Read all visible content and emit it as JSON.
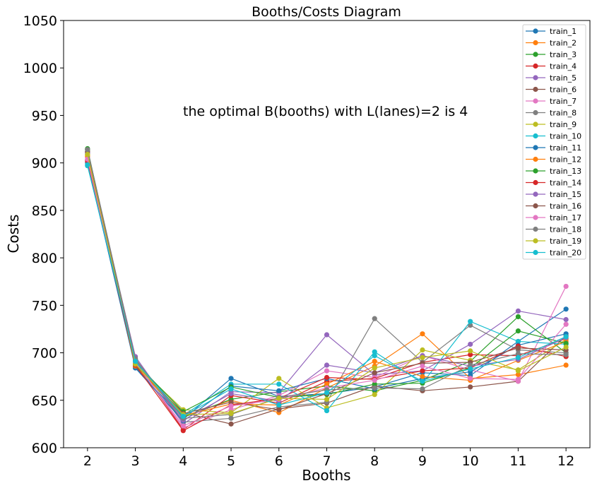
{
  "chart_data": {
    "type": "line",
    "title": "Booths/Costs Diagram",
    "xlabel": "Booths",
    "ylabel": "Costs",
    "x": [
      2,
      3,
      4,
      5,
      6,
      7,
      8,
      9,
      10,
      11,
      12
    ],
    "xlim": [
      1.5,
      12.5
    ],
    "ylim": [
      600,
      1050
    ],
    "yticks": [
      600,
      650,
      700,
      750,
      800,
      850,
      900,
      950,
      1000,
      1050
    ],
    "annotation": "the optimal B(booths) with L(lanes)=2 is 4",
    "legend_position": "top-right",
    "grid": false,
    "series": [
      {
        "name": "train_1",
        "color": "#1f77b4",
        "values": [
          912,
          685,
          630,
          673,
          654,
          657,
          664,
          679,
          676,
          712,
          746
        ]
      },
      {
        "name": "train_2",
        "color": "#ff7f0e",
        "values": [
          909,
          689,
          633,
          650,
          637,
          663,
          686,
          720,
          673,
          677,
          687
        ]
      },
      {
        "name": "train_3",
        "color": "#2ca02c",
        "values": [
          915,
          687,
          632,
          651,
          659,
          665,
          660,
          671,
          691,
          738,
          700
        ]
      },
      {
        "name": "train_4",
        "color": "#d62728",
        "values": [
          903,
          691,
          619,
          655,
          647,
          670,
          673,
          690,
          698,
          697,
          715
        ]
      },
      {
        "name": "train_5",
        "color": "#9467bd",
        "values": [
          910,
          696,
          625,
          659,
          658,
          719,
          677,
          681,
          709,
          744,
          735
        ]
      },
      {
        "name": "train_6",
        "color": "#8c564b",
        "values": [
          911,
          685,
          637,
          625,
          641,
          647,
          665,
          660,
          664,
          670,
          718
        ]
      },
      {
        "name": "train_7",
        "color": "#e377c2",
        "values": [
          906,
          690,
          621,
          640,
          655,
          681,
          674,
          697,
          682,
          670,
          770
        ]
      },
      {
        "name": "train_8",
        "color": "#7f7f7f",
        "values": [
          914,
          694,
          627,
          631,
          643,
          648,
          736,
          690,
          729,
          703,
          700
        ]
      },
      {
        "name": "train_9",
        "color": "#bcbd22",
        "values": [
          908,
          688,
          640,
          637,
          673,
          642,
          656,
          703,
          692,
          682,
          714
        ]
      },
      {
        "name": "train_10",
        "color": "#17becf",
        "values": [
          897,
          692,
          634,
          667,
          667,
          639,
          701,
          668,
          733,
          712,
          709
        ]
      },
      {
        "name": "train_11",
        "color": "#1f77b4",
        "values": [
          900,
          684,
          628,
          665,
          660,
          673,
          662,
          673,
          680,
          708,
          720
        ]
      },
      {
        "name": "train_12",
        "color": "#ff7f0e",
        "values": [
          907,
          686,
          634,
          646,
          645,
          667,
          691,
          675,
          671,
          692,
          712
        ]
      },
      {
        "name": "train_13",
        "color": "#2ca02c",
        "values": [
          914,
          690,
          638,
          664,
          653,
          656,
          667,
          668,
          684,
          723,
          710
        ]
      },
      {
        "name": "train_14",
        "color": "#d62728",
        "values": [
          902,
          687,
          618,
          645,
          652,
          674,
          672,
          681,
          684,
          707,
          696
        ]
      },
      {
        "name": "train_15",
        "color": "#9467bd",
        "values": [
          911,
          693,
          629,
          657,
          649,
          687,
          679,
          697,
          686,
          693,
          716
        ]
      },
      {
        "name": "train_16",
        "color": "#8c564b",
        "values": [
          912,
          688,
          636,
          648,
          640,
          657,
          679,
          689,
          690,
          705,
          703
        ]
      },
      {
        "name": "train_17",
        "color": "#e377c2",
        "values": [
          904,
          690,
          623,
          644,
          651,
          663,
          671,
          686,
          673,
          672,
          730
        ]
      },
      {
        "name": "train_18",
        "color": "#7f7f7f",
        "values": [
          914,
          693,
          631,
          635,
          653,
          661,
          663,
          662,
          687,
          699,
          698
        ]
      },
      {
        "name": "train_19",
        "color": "#bcbd22",
        "values": [
          909,
          688,
          635,
          636,
          652,
          651,
          684,
          695,
          702,
          681,
          706
        ]
      },
      {
        "name": "train_20",
        "color": "#17becf",
        "values": [
          898,
          691,
          633,
          662,
          645,
          658,
          697,
          670,
          683,
          695,
          717
        ]
      }
    ]
  }
}
